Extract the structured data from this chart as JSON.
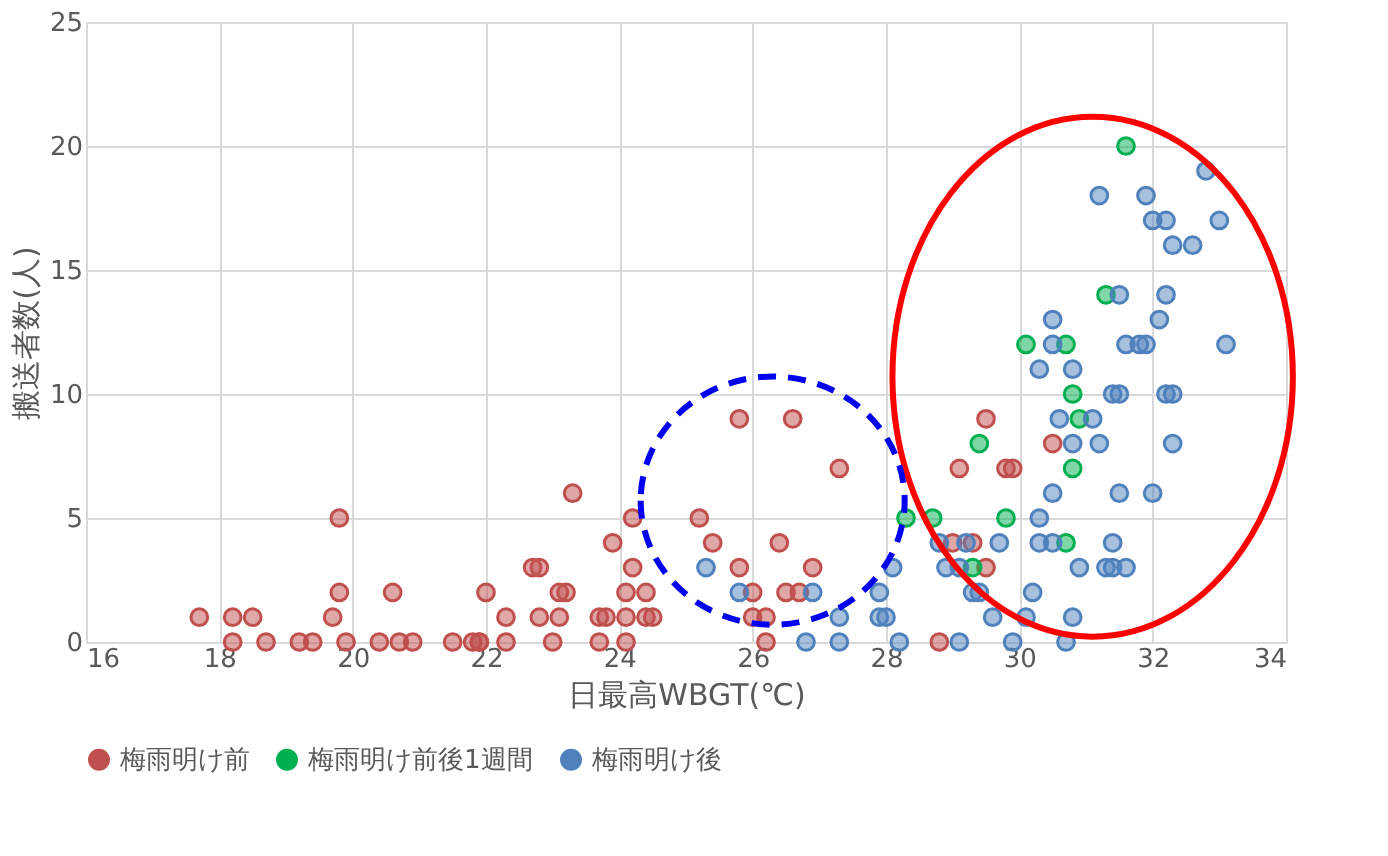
{
  "chart_data": {
    "type": "scatter",
    "xlabel": "日最高WBGT(℃)",
    "ylabel": "搬送者数(人)",
    "xlim": [
      16,
      34
    ],
    "xticks": [
      16,
      18,
      20,
      22,
      24,
      26,
      28,
      30,
      32,
      34
    ],
    "ylim": [
      0,
      25
    ],
    "yticks": [
      0,
      5,
      10,
      15,
      20,
      25
    ],
    "grid": true,
    "legend": "bottom",
    "marker": "circle",
    "series": [
      {
        "name": "梅雨明け前",
        "color": "#c0504d",
        "x": [
          17.7,
          18.2,
          18.5,
          19.7,
          18.2,
          18.7,
          19.2,
          19.4,
          19.9,
          20.4,
          20.7,
          20.9,
          21.5,
          21.8,
          21.9,
          19.8,
          20.6,
          22.0,
          19.8,
          21.9,
          22.3,
          23.0,
          23.7,
          24.1,
          26.2,
          22.3,
          22.8,
          23.1,
          23.7,
          23.8,
          24.1,
          24.4,
          24.5,
          26.0,
          26.2,
          23.1,
          23.2,
          24.1,
          24.4,
          26.0,
          26.5,
          26.7,
          22.7,
          22.8,
          24.2,
          25.8,
          26.9,
          23.9,
          25.4,
          26.4,
          24.2,
          25.2,
          23.3,
          27.3,
          25.8,
          26.6,
          29.5,
          30.5,
          29.1,
          29.8,
          29.9,
          29.0,
          29.3,
          29.5,
          28.8
        ],
        "values": [
          1,
          1,
          1,
          1,
          0,
          0,
          0,
          0,
          0,
          0,
          0,
          0,
          0,
          0,
          0,
          2,
          2,
          2,
          5,
          0,
          0,
          0,
          0,
          0,
          0,
          1,
          1,
          1,
          1,
          1,
          1,
          1,
          1,
          1,
          1,
          2,
          2,
          2,
          2,
          2,
          2,
          2,
          3,
          3,
          3,
          3,
          3,
          4,
          4,
          4,
          5,
          5,
          6,
          7,
          9,
          9,
          9,
          8,
          7,
          7,
          7,
          4,
          4,
          3,
          0
        ]
      },
      {
        "name": "梅雨明け前後1週間",
        "color": "#00b050",
        "x": [
          31.6,
          31.3,
          30.1,
          30.7,
          30.8,
          30.9,
          29.4,
          30.8,
          28.3,
          28.7,
          29.8,
          30.7,
          29.3
        ],
        "values": [
          20,
          14,
          12,
          12,
          10,
          9,
          8,
          7,
          5,
          5,
          5,
          4,
          3
        ]
      },
      {
        "name": "梅雨明け後",
        "color": "#4f81bd",
        "x": [
          25.3,
          25.8,
          26.9,
          26.8,
          27.3,
          27.3,
          27.9,
          27.9,
          28.0,
          28.2,
          28.1,
          32.8,
          31.2,
          31.9,
          32.0,
          32.2,
          33.0,
          32.3,
          32.6,
          31.5,
          32.2,
          30.5,
          32.1,
          30.5,
          31.6,
          31.8,
          31.9,
          33.1,
          30.3,
          30.8,
          31.4,
          31.5,
          32.2,
          32.3,
          30.6,
          31.1,
          30.8,
          31.2,
          32.3,
          30.5,
          31.5,
          32.0,
          30.3,
          28.8,
          29.2,
          29.7,
          30.3,
          30.5,
          31.4,
          28.9,
          29.1,
          30.9,
          31.3,
          31.4,
          31.6,
          29.3,
          29.4,
          30.2,
          29.6,
          30.1,
          30.8,
          29.1,
          29.9,
          30.7
        ],
        "values": [
          3,
          2,
          2,
          0,
          1,
          0,
          2,
          1,
          1,
          0,
          3,
          19,
          18,
          18,
          17,
          17,
          17,
          16,
          16,
          14,
          14,
          13,
          13,
          12,
          12,
          12,
          12,
          12,
          11,
          11,
          10,
          10,
          10,
          10,
          9,
          9,
          8,
          8,
          8,
          6,
          6,
          6,
          5,
          4,
          4,
          4,
          4,
          4,
          4,
          3,
          3,
          3,
          3,
          3,
          3,
          2,
          2,
          2,
          1,
          1,
          1,
          0,
          0,
          0
        ]
      }
    ]
  }
}
